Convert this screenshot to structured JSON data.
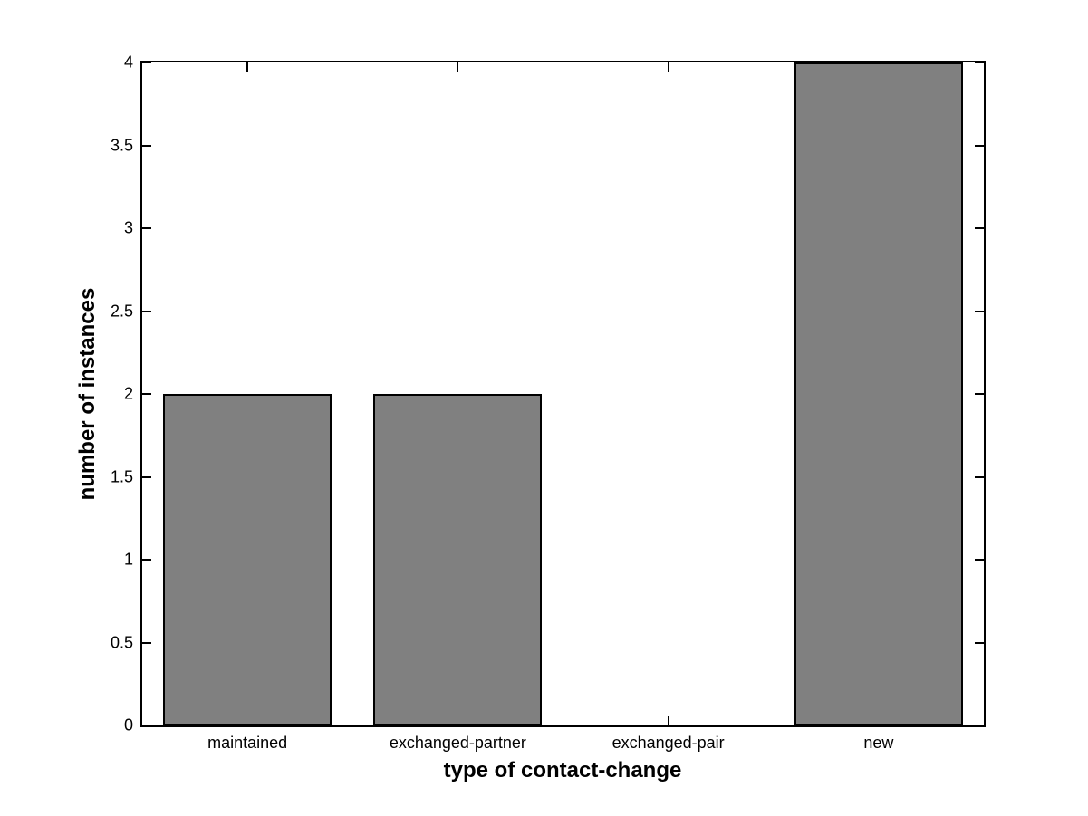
{
  "figure": {
    "background": "#ffffff"
  },
  "chart_data": {
    "type": "bar",
    "categories": [
      "maintained",
      "exchanged-partner",
      "exchanged-pair",
      "new"
    ],
    "values": [
      2,
      2,
      0,
      4
    ],
    "xlabel": "type of contact-change",
    "ylabel": "number of instances",
    "ylim": [
      0,
      4
    ],
    "yticks": [
      0,
      0.5,
      1,
      1.5,
      2,
      2.5,
      3,
      3.5,
      4
    ],
    "ytick_labels": [
      "0",
      "0.5",
      "1",
      "1.5",
      "2",
      "2.5",
      "3",
      "3.5",
      "4"
    ],
    "bar_width_fraction": 0.8,
    "bar_fill": "#808080",
    "bar_edge": "#000000",
    "axis_color": "#000000",
    "grid": false,
    "tick_direction": "in",
    "box": true
  }
}
